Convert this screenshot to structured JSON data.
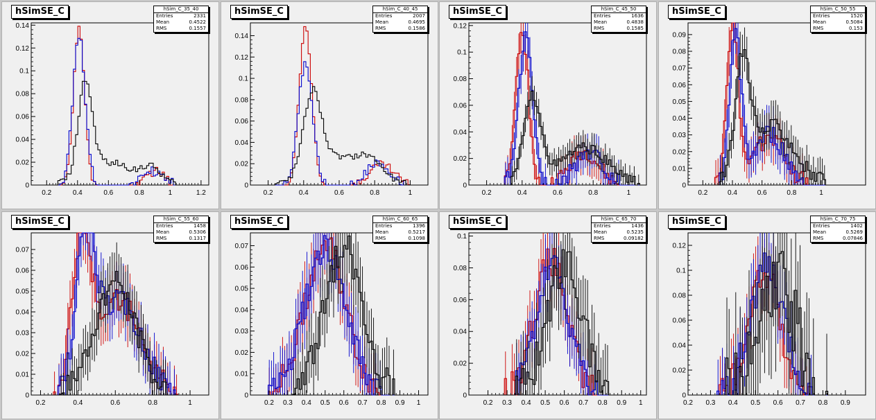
{
  "chart_data": [
    {
      "type": "histogram",
      "title": "hSimSE_C",
      "stats": {
        "name": "hSim_C_35_40",
        "entries": "2331",
        "mean": "0.4522",
        "rms": "0.1557"
      },
      "stat_labels": {
        "entries": "Entries",
        "mean": "Mean",
        "rms": "RMS"
      },
      "xlim": [
        0.1,
        1.25
      ],
      "ylim": [
        0,
        0.142
      ],
      "xticks": [
        {
          "v": 0.2,
          "l": "0.2"
        },
        {
          "v": 0.4,
          "l": "0.4"
        },
        {
          "v": 0.6,
          "l": "0.6"
        },
        {
          "v": 0.8,
          "l": "0.8"
        },
        {
          "v": 1,
          "l": "1"
        },
        {
          "v": 1.2,
          "l": "1.2"
        }
      ],
      "yticks": [
        {
          "v": 0,
          "l": "0"
        },
        {
          "v": 0.02,
          "l": "0.02"
        },
        {
          "v": 0.04,
          "l": "0.04"
        },
        {
          "v": 0.06,
          "l": "0.06"
        },
        {
          "v": 0.08,
          "l": "0.08"
        },
        {
          "v": 0.1,
          "l": "0.1"
        },
        {
          "v": 0.12,
          "l": "0.12"
        },
        {
          "v": 0.14,
          "l": "0.14"
        }
      ],
      "errors": false,
      "series": [
        {
          "color": "#cc0000",
          "peak": 0.41,
          "w": 0.035,
          "amp": 0.14,
          "tail": [
            [
              0.9,
              0.012,
              0.06
            ]
          ],
          "jit": 0.004
        },
        {
          "color": "#0000cc",
          "peak": 0.41,
          "w": 0.04,
          "amp": 0.13,
          "tail": [
            [
              0.88,
              0.012,
              0.07
            ]
          ],
          "jit": 0.004
        },
        {
          "color": "#000000",
          "peak": 0.45,
          "w": 0.045,
          "amp": 0.08,
          "tail": [
            [
              0.6,
              0.02,
              0.15
            ],
            [
              0.88,
              0.013,
              0.07
            ]
          ],
          "jit": 0.003
        }
      ]
    },
    {
      "type": "histogram",
      "title": "hSimSE_C",
      "stats": {
        "name": "hSim_C_40_45",
        "entries": "2007",
        "mean": "0.4695",
        "rms": "0.1586"
      },
      "stat_labels": {
        "entries": "Entries",
        "mean": "Mean",
        "rms": "RMS"
      },
      "xlim": [
        0.1,
        1.1
      ],
      "ylim": [
        0,
        0.152
      ],
      "xticks": [
        {
          "v": 0.2,
          "l": "0.2"
        },
        {
          "v": 0.4,
          "l": "0.4"
        },
        {
          "v": 0.6,
          "l": "0.6"
        },
        {
          "v": 0.8,
          "l": "0.8"
        },
        {
          "v": 1,
          "l": "1"
        }
      ],
      "yticks": [
        {
          "v": 0,
          "l": "0"
        },
        {
          "v": 0.02,
          "l": "0.02"
        },
        {
          "v": 0.04,
          "l": "0.04"
        },
        {
          "v": 0.06,
          "l": "0.06"
        },
        {
          "v": 0.08,
          "l": "0.08"
        },
        {
          "v": 0.1,
          "l": "0.1"
        },
        {
          "v": 0.12,
          "l": "0.12"
        },
        {
          "v": 0.14,
          "l": "0.14"
        }
      ],
      "errors": false,
      "series": [
        {
          "color": "#cc0000",
          "peak": 0.41,
          "w": 0.035,
          "amp": 0.15,
          "tail": [
            [
              0.84,
              0.02,
              0.07
            ]
          ],
          "jit": 0.004
        },
        {
          "color": "#0000cc",
          "peak": 0.41,
          "w": 0.04,
          "amp": 0.115,
          "tail": [
            [
              0.82,
              0.02,
              0.07
            ]
          ],
          "jit": 0.004
        },
        {
          "color": "#000000",
          "peak": 0.45,
          "w": 0.05,
          "amp": 0.075,
          "tail": [
            [
              0.6,
              0.025,
              0.15
            ],
            [
              0.78,
              0.015,
              0.07
            ]
          ],
          "jit": 0.003
        }
      ]
    },
    {
      "type": "histogram",
      "title": "hSimSE_C",
      "stats": {
        "name": "hSim_C_45_50",
        "entries": "1636",
        "mean": "0.4838",
        "rms": "0.1585"
      },
      "stat_labels": {
        "entries": "Entries",
        "mean": "Mean",
        "rms": "RMS"
      },
      "xlim": [
        0.1,
        1.1
      ],
      "ylim": [
        0,
        0.122
      ],
      "xticks": [
        {
          "v": 0.2,
          "l": "0.2"
        },
        {
          "v": 0.4,
          "l": "0.4"
        },
        {
          "v": 0.6,
          "l": "0.6"
        },
        {
          "v": 0.8,
          "l": "0.8"
        },
        {
          "v": 1,
          "l": "1"
        }
      ],
      "yticks": [
        {
          "v": 0,
          "l": "0"
        },
        {
          "v": 0.02,
          "l": "0.02"
        },
        {
          "v": 0.04,
          "l": "0.04"
        },
        {
          "v": 0.06,
          "l": "0.06"
        },
        {
          "v": 0.08,
          "l": "0.08"
        },
        {
          "v": 0.1,
          "l": "0.1"
        },
        {
          "v": 0.12,
          "l": "0.12"
        }
      ],
      "errors": true,
      "series": [
        {
          "color": "#cc0000",
          "peak": 0.4,
          "w": 0.035,
          "amp": 0.12,
          "tail": [
            [
              0.75,
              0.025,
              0.08
            ]
          ],
          "jit": 0.006
        },
        {
          "color": "#0000cc",
          "peak": 0.42,
          "w": 0.04,
          "amp": 0.11,
          "tail": [
            [
              0.78,
              0.025,
              0.08
            ]
          ],
          "jit": 0.006
        },
        {
          "color": "#000000",
          "peak": 0.46,
          "w": 0.05,
          "amp": 0.065,
          "tail": [
            [
              0.75,
              0.028,
              0.13
            ]
          ],
          "jit": 0.004
        }
      ]
    },
    {
      "type": "histogram",
      "title": "hSimSE_C",
      "stats": {
        "name": "hSim_C_50_55",
        "entries": "1520",
        "mean": "0.5084",
        "rms": "0.153"
      },
      "stat_labels": {
        "entries": "Entries",
        "mean": "Mean",
        "rms": "RMS"
      },
      "xlim": [
        0.1,
        1.3
      ],
      "ylim": [
        0,
        0.097
      ],
      "xticks": [
        {
          "v": 0.2,
          "l": "0.2"
        },
        {
          "v": 0.4,
          "l": "0.4"
        },
        {
          "v": 0.6,
          "l": "0.6"
        },
        {
          "v": 0.8,
          "l": "0.8"
        },
        {
          "v": 1,
          "l": "1"
        }
      ],
      "yticks": [
        {
          "v": 0,
          "l": "0"
        },
        {
          "v": 0.01,
          "l": "0.01"
        },
        {
          "v": 0.02,
          "l": "0.02"
        },
        {
          "v": 0.03,
          "l": "0.03"
        },
        {
          "v": 0.04,
          "l": "0.04"
        },
        {
          "v": 0.05,
          "l": "0.05"
        },
        {
          "v": 0.06,
          "l": "0.06"
        },
        {
          "v": 0.07,
          "l": "0.07"
        },
        {
          "v": 0.08,
          "l": "0.08"
        },
        {
          "v": 0.09,
          "l": "0.09"
        }
      ],
      "errors": true,
      "series": [
        {
          "color": "#cc0000",
          "peak": 0.4,
          "w": 0.04,
          "amp": 0.095,
          "tail": [
            [
              0.66,
              0.03,
              0.1
            ]
          ],
          "jit": 0.006
        },
        {
          "color": "#0000cc",
          "peak": 0.42,
          "w": 0.04,
          "amp": 0.09,
          "tail": [
            [
              0.65,
              0.03,
              0.1
            ]
          ],
          "jit": 0.006
        },
        {
          "color": "#000000",
          "peak": 0.47,
          "w": 0.05,
          "amp": 0.07,
          "tail": [
            [
              0.68,
              0.035,
              0.14
            ]
          ],
          "jit": 0.005
        }
      ]
    },
    {
      "type": "histogram",
      "title": "hSimSE_C",
      "stats": {
        "name": "hSim_C_55_60",
        "entries": "1458",
        "mean": "0.5306",
        "rms": "0.1317"
      },
      "stat_labels": {
        "entries": "Entries",
        "mean": "Mean",
        "rms": "RMS"
      },
      "xlim": [
        0.15,
        1.1
      ],
      "ylim": [
        0,
        0.078
      ],
      "xticks": [
        {
          "v": 0.2,
          "l": "0.2"
        },
        {
          "v": 0.4,
          "l": "0.4"
        },
        {
          "v": 0.6,
          "l": "0.6"
        },
        {
          "v": 0.8,
          "l": "0.8"
        },
        {
          "v": 1,
          "l": "1"
        }
      ],
      "yticks": [
        {
          "v": 0,
          "l": "0"
        },
        {
          "v": 0.01,
          "l": "0.01"
        },
        {
          "v": 0.02,
          "l": "0.02"
        },
        {
          "v": 0.03,
          "l": "0.03"
        },
        {
          "v": 0.04,
          "l": "0.04"
        },
        {
          "v": 0.05,
          "l": "0.05"
        },
        {
          "v": 0.06,
          "l": "0.06"
        },
        {
          "v": 0.07,
          "l": "0.07"
        }
      ],
      "errors": true,
      "series": [
        {
          "color": "#cc0000",
          "peak": 0.42,
          "w": 0.05,
          "amp": 0.072,
          "tail": [
            [
              0.62,
              0.045,
              0.12
            ]
          ],
          "jit": 0.006
        },
        {
          "color": "#0000cc",
          "peak": 0.44,
          "w": 0.05,
          "amp": 0.07,
          "tail": [
            [
              0.62,
              0.045,
              0.12
            ]
          ],
          "jit": 0.006
        },
        {
          "color": "#000000",
          "peak": 0.6,
          "w": 0.11,
          "amp": 0.055,
          "tail": [],
          "jit": 0.006
        }
      ]
    },
    {
      "type": "histogram",
      "title": "hSimSE_C",
      "stats": {
        "name": "hSim_C_60_65",
        "entries": "1396",
        "mean": "0.5217",
        "rms": "0.1098"
      },
      "stat_labels": {
        "entries": "Entries",
        "mean": "Mean",
        "rms": "RMS"
      },
      "xlim": [
        0.1,
        1.05
      ],
      "ylim": [
        0,
        0.076
      ],
      "xticks": [
        {
          "v": 0.2,
          "l": "0.2"
        },
        {
          "v": 0.3,
          "l": "0.3"
        },
        {
          "v": 0.4,
          "l": "0.4"
        },
        {
          "v": 0.5,
          "l": "0.5"
        },
        {
          "v": 0.6,
          "l": "0.6"
        },
        {
          "v": 0.7,
          "l": "0.7"
        },
        {
          "v": 0.8,
          "l": "0.8"
        },
        {
          "v": 0.9,
          "l": "0.9"
        },
        {
          "v": 1,
          "l": "1"
        }
      ],
      "yticks": [
        {
          "v": 0,
          "l": "0"
        },
        {
          "v": 0.01,
          "l": "0.01"
        },
        {
          "v": 0.02,
          "l": "0.02"
        },
        {
          "v": 0.03,
          "l": "0.03"
        },
        {
          "v": 0.04,
          "l": "0.04"
        },
        {
          "v": 0.05,
          "l": "0.05"
        },
        {
          "v": 0.06,
          "l": "0.06"
        },
        {
          "v": 0.07,
          "l": "0.07"
        }
      ],
      "errors": true,
      "series": [
        {
          "color": "#cc0000",
          "peak": 0.5,
          "w": 0.11,
          "amp": 0.07,
          "tail": [],
          "jit": 0.007
        },
        {
          "color": "#0000cc",
          "peak": 0.5,
          "w": 0.11,
          "amp": 0.068,
          "tail": [],
          "jit": 0.007
        },
        {
          "color": "#000000",
          "peak": 0.6,
          "w": 0.1,
          "amp": 0.07,
          "tail": [],
          "jit": 0.008
        }
      ]
    },
    {
      "type": "histogram",
      "title": "hSimSE_C",
      "stats": {
        "name": "hSim_C_65_70",
        "entries": "1436",
        "mean": "0.5235",
        "rms": "0.09182"
      },
      "stat_labels": {
        "entries": "Entries",
        "mean": "Mean",
        "rms": "RMS"
      },
      "xlim": [
        0.1,
        1.03
      ],
      "ylim": [
        0,
        0.102
      ],
      "xticks": [
        {
          "v": 0.2,
          "l": "0.2"
        },
        {
          "v": 0.3,
          "l": "0.3"
        },
        {
          "v": 0.4,
          "l": "0.4"
        },
        {
          "v": 0.5,
          "l": "0.5"
        },
        {
          "v": 0.6,
          "l": "0.6"
        },
        {
          "v": 0.7,
          "l": "0.7"
        },
        {
          "v": 0.8,
          "l": "0.8"
        },
        {
          "v": 0.9,
          "l": "0.9"
        },
        {
          "v": 1,
          "l": "1"
        }
      ],
      "yticks": [
        {
          "v": 0,
          "l": "0"
        },
        {
          "v": 0.02,
          "l": "0.02"
        },
        {
          "v": 0.04,
          "l": "0.04"
        },
        {
          "v": 0.06,
          "l": "0.06"
        },
        {
          "v": 0.08,
          "l": "0.08"
        },
        {
          "v": 0.1,
          "l": "0.1"
        }
      ],
      "errors": true,
      "series": [
        {
          "color": "#cc0000",
          "peak": 0.53,
          "w": 0.085,
          "amp": 0.085,
          "tail": [],
          "jit": 0.01
        },
        {
          "color": "#0000cc",
          "peak": 0.54,
          "w": 0.085,
          "amp": 0.08,
          "tail": [],
          "jit": 0.01
        },
        {
          "color": "#000000",
          "peak": 0.6,
          "w": 0.09,
          "amp": 0.085,
          "tail": [],
          "jit": 0.014
        }
      ]
    },
    {
      "type": "histogram",
      "title": "hSimSE_C",
      "stats": {
        "name": "hSim_C_70_75",
        "entries": "1402",
        "mean": "0.5269",
        "rms": "0.07846"
      },
      "stat_labels": {
        "entries": "Entries",
        "mean": "Mean",
        "rms": "RMS"
      },
      "xlim": [
        0.2,
        0.99
      ],
      "ylim": [
        0,
        0.13
      ],
      "xticks": [
        {
          "v": 0.2,
          "l": "0.2"
        },
        {
          "v": 0.3,
          "l": "0.3"
        },
        {
          "v": 0.4,
          "l": "0.4"
        },
        {
          "v": 0.5,
          "l": "0.5"
        },
        {
          "v": 0.6,
          "l": "0.6"
        },
        {
          "v": 0.7,
          "l": "0.7"
        },
        {
          "v": 0.8,
          "l": "0.8"
        },
        {
          "v": 0.9,
          "l": "0.9"
        }
      ],
      "yticks": [
        {
          "v": 0,
          "l": "0"
        },
        {
          "v": 0.02,
          "l": "0.02"
        },
        {
          "v": 0.04,
          "l": "0.04"
        },
        {
          "v": 0.06,
          "l": "0.06"
        },
        {
          "v": 0.08,
          "l": "0.08"
        },
        {
          "v": 0.1,
          "l": "0.1"
        },
        {
          "v": 0.12,
          "l": "0.12"
        }
      ],
      "errors": true,
      "series": [
        {
          "color": "#cc0000",
          "peak": 0.54,
          "w": 0.07,
          "amp": 0.1,
          "tail": [],
          "jit": 0.014
        },
        {
          "color": "#0000cc",
          "peak": 0.55,
          "w": 0.075,
          "amp": 0.1,
          "tail": [],
          "jit": 0.016
        },
        {
          "color": "#000000",
          "peak": 0.6,
          "w": 0.08,
          "amp": 0.09,
          "tail": [],
          "jit": 0.03
        }
      ]
    }
  ]
}
